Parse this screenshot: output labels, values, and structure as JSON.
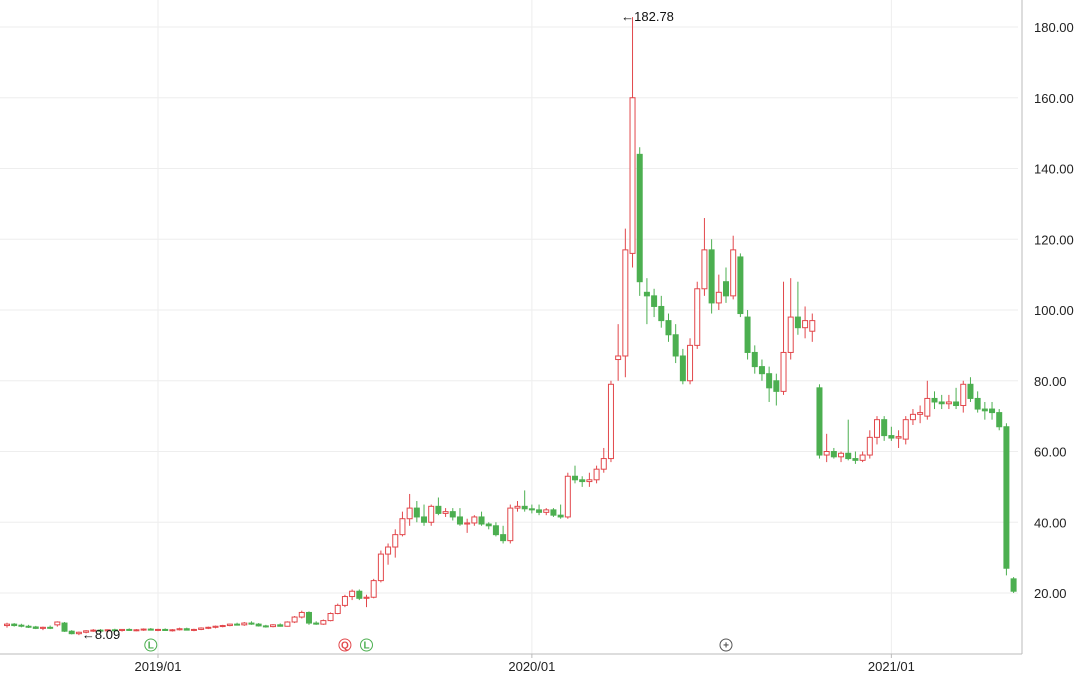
{
  "chart_data": {
    "type": "candlestick",
    "title": "",
    "xlabel": "",
    "ylabel": "",
    "ylim": [
      0,
      183
    ],
    "grid": true,
    "colors": {
      "up": "#e2474b",
      "down": "#4caf50",
      "grid": "#eeeeee",
      "axis": "#bbbbbb"
    },
    "y_ticks": [
      "20.00",
      "40.00",
      "60.00",
      "80.00",
      "100.00",
      "120.00",
      "140.00",
      "160.00",
      "180.00"
    ],
    "x_ticks": [
      {
        "label": "2019/01",
        "week": 21
      },
      {
        "label": "2020/01",
        "week": 73
      },
      {
        "label": "2021/01",
        "week": 123
      }
    ],
    "annotations": [
      {
        "label": "←182.78",
        "week": 85,
        "value": 182.78
      },
      {
        "label": "←8.09",
        "week": 10,
        "value": 8.09
      }
    ],
    "markers": [
      {
        "label": "L",
        "week": 20,
        "color": "#4caf50"
      },
      {
        "label": "Q",
        "week": 47,
        "color": "#e2474b"
      },
      {
        "label": "L",
        "week": 50,
        "color": "#4caf50"
      },
      {
        "label": "+",
        "week": 100,
        "color": "#555555"
      }
    ],
    "candles": [
      [
        10.8,
        11.6,
        10.2,
        11.2
      ],
      [
        11.2,
        11.5,
        10.5,
        10.8
      ],
      [
        10.9,
        11.3,
        10.3,
        10.6
      ],
      [
        10.6,
        11.0,
        10.1,
        10.4
      ],
      [
        10.4,
        10.7,
        9.8,
        10.0
      ],
      [
        10.0,
        10.5,
        9.5,
        10.3
      ],
      [
        10.3,
        10.8,
        9.8,
        10.1
      ],
      [
        11.0,
        12.0,
        10.5,
        11.8
      ],
      [
        11.5,
        11.8,
        9.0,
        9.2
      ],
      [
        9.2,
        9.5,
        8.3,
        8.5
      ],
      [
        8.5,
        9.1,
        8.09,
        8.9
      ],
      [
        8.9,
        9.5,
        8.6,
        9.3
      ],
      [
        9.3,
        9.8,
        9.0,
        9.5
      ],
      [
        9.5,
        9.8,
        9.1,
        9.3
      ],
      [
        9.3,
        9.7,
        9.0,
        9.6
      ],
      [
        9.6,
        9.9,
        9.2,
        9.4
      ],
      [
        9.4,
        9.8,
        9.1,
        9.7
      ],
      [
        9.7,
        10.0,
        9.3,
        9.5
      ],
      [
        9.5,
        9.8,
        9.2,
        9.6
      ],
      [
        9.6,
        10.0,
        9.3,
        9.8
      ],
      [
        9.8,
        10.1,
        9.4,
        9.5
      ],
      [
        9.5,
        9.9,
        9.2,
        9.7
      ],
      [
        9.7,
        10.0,
        9.3,
        9.4
      ],
      [
        9.4,
        9.8,
        9.1,
        9.6
      ],
      [
        9.6,
        10.2,
        9.4,
        9.9
      ],
      [
        9.9,
        10.2,
        9.4,
        9.5
      ],
      [
        9.5,
        9.9,
        9.2,
        9.7
      ],
      [
        9.7,
        10.3,
        9.5,
        10.1
      ],
      [
        10.1,
        10.5,
        9.8,
        10.3
      ],
      [
        10.3,
        10.8,
        10.0,
        10.6
      ],
      [
        10.6,
        11.0,
        10.3,
        10.8
      ],
      [
        10.8,
        11.3,
        10.6,
        11.2
      ],
      [
        11.2,
        11.6,
        10.8,
        11.0
      ],
      [
        11.0,
        11.8,
        10.7,
        11.5
      ],
      [
        11.5,
        12.0,
        11.0,
        11.2
      ],
      [
        11.2,
        11.5,
        10.5,
        10.7
      ],
      [
        10.7,
        11.0,
        10.2,
        10.5
      ],
      [
        10.5,
        11.2,
        10.3,
        11.0
      ],
      [
        11.0,
        11.4,
        10.5,
        10.6
      ],
      [
        10.6,
        12.0,
        10.5,
        11.8
      ],
      [
        11.8,
        13.5,
        11.5,
        13.2
      ],
      [
        13.2,
        15.0,
        12.8,
        14.5
      ],
      [
        14.5,
        14.8,
        11.0,
        11.5
      ],
      [
        11.5,
        12.0,
        11.0,
        11.2
      ],
      [
        11.2,
        12.5,
        11.0,
        12.2
      ],
      [
        12.2,
        14.5,
        12.0,
        14.2
      ],
      [
        14.2,
        17.0,
        14.0,
        16.5
      ],
      [
        16.5,
        19.5,
        16.0,
        19.0
      ],
      [
        19.0,
        21.0,
        18.0,
        20.5
      ],
      [
        20.5,
        21.0,
        18.0,
        18.5
      ],
      [
        18.5,
        19.5,
        16.0,
        18.8
      ],
      [
        18.8,
        24.0,
        18.5,
        23.5
      ],
      [
        23.5,
        32.0,
        23.0,
        31.0
      ],
      [
        31.0,
        34.0,
        28.0,
        33.0
      ],
      [
        33.0,
        38.0,
        30.0,
        36.5
      ],
      [
        36.5,
        43.0,
        36.0,
        41.0
      ],
      [
        41.0,
        48.0,
        39.0,
        44.0
      ],
      [
        44.0,
        46.0,
        40.0,
        41.5
      ],
      [
        41.5,
        45.0,
        39.0,
        40.0
      ],
      [
        40.0,
        45.0,
        39.0,
        44.5
      ],
      [
        44.5,
        47.0,
        42.0,
        42.5
      ],
      [
        42.5,
        44.0,
        41.5,
        43.0
      ],
      [
        43.0,
        44.0,
        40.5,
        41.5
      ],
      [
        41.5,
        44.0,
        39.0,
        39.5
      ],
      [
        39.5,
        41.0,
        37.0,
        39.8
      ],
      [
        39.8,
        42.0,
        39.0,
        41.5
      ],
      [
        41.5,
        43.0,
        39.0,
        39.5
      ],
      [
        39.5,
        40.0,
        38.0,
        39.0
      ],
      [
        39.0,
        40.0,
        36.0,
        36.5
      ],
      [
        36.5,
        39.0,
        34.0,
        34.8
      ],
      [
        34.8,
        45.0,
        34.0,
        44.0
      ],
      [
        44.0,
        46.0,
        43.0,
        44.5
      ],
      [
        44.5,
        49.0,
        43.0,
        43.8
      ],
      [
        43.8,
        45.0,
        42.5,
        43.5
      ],
      [
        43.5,
        45.0,
        42.0,
        42.8
      ],
      [
        42.8,
        44.0,
        42.0,
        43.5
      ],
      [
        43.5,
        44.0,
        41.5,
        42.0
      ],
      [
        42.0,
        45.0,
        41.0,
        41.5
      ],
      [
        41.5,
        54.0,
        41.0,
        53.0
      ],
      [
        53.0,
        56.0,
        51.0,
        52.0
      ],
      [
        52.0,
        53.0,
        50.0,
        51.5
      ],
      [
        51.5,
        54.0,
        50.0,
        52.0
      ],
      [
        52.0,
        56.0,
        51.0,
        55.0
      ],
      [
        55.0,
        61.0,
        54.0,
        58.0
      ],
      [
        58.0,
        80.0,
        57.0,
        79.0
      ],
      [
        86.0,
        96.0,
        80.0,
        87.0
      ],
      [
        87.0,
        123.0,
        81.0,
        117.0
      ],
      [
        116.0,
        182.78,
        112.0,
        160.0
      ],
      [
        144.0,
        146.0,
        104.0,
        108.0
      ],
      [
        105.0,
        109.0,
        96.0,
        104.0
      ],
      [
        104.0,
        106.0,
        98.0,
        101.0
      ],
      [
        101.0,
        104.0,
        95.0,
        97.0
      ],
      [
        97.0,
        99.0,
        91.0,
        93.0
      ],
      [
        93.0,
        96.0,
        85.0,
        87.0
      ],
      [
        87.0,
        89.0,
        79.0,
        80.0
      ],
      [
        80.0,
        92.0,
        79.0,
        90.0
      ],
      [
        90.0,
        108.0,
        89.0,
        106.0
      ],
      [
        106.0,
        126.0,
        104.0,
        117.0
      ],
      [
        117.0,
        120.0,
        99.0,
        102.0
      ],
      [
        102.0,
        110.0,
        100.0,
        105.0
      ],
      [
        108.0,
        112.0,
        102.0,
        104.0
      ],
      [
        104.0,
        121.0,
        103.0,
        117.0
      ],
      [
        115.0,
        116.0,
        98.0,
        99.0
      ],
      [
        98.0,
        100.0,
        86.0,
        88.0
      ],
      [
        88.0,
        90.0,
        82.0,
        84.0
      ],
      [
        84.0,
        86.0,
        80.0,
        82.0
      ],
      [
        82.0,
        84.0,
        74.0,
        78.0
      ],
      [
        80.0,
        82.0,
        73.0,
        77.0
      ],
      [
        77.0,
        108.0,
        76.0,
        88.0
      ],
      [
        88.0,
        109.0,
        86.0,
        98.0
      ],
      [
        98.0,
        108.0,
        93.0,
        95.0
      ],
      [
        95.0,
        101.0,
        92.0,
        97.0
      ],
      [
        94.0,
        99.0,
        91.0,
        97.0
      ],
      [
        78.0,
        79.0,
        58.0,
        59.0
      ],
      [
        59.0,
        65.0,
        57.0,
        60.0
      ],
      [
        60.0,
        61.0,
        58.0,
        58.5
      ],
      [
        58.5,
        60.0,
        57.0,
        59.5
      ],
      [
        59.5,
        69.0,
        57.5,
        58.0
      ],
      [
        58.0,
        60.0,
        56.5,
        57.5
      ],
      [
        57.5,
        60.0,
        57.0,
        59.0
      ],
      [
        59.0,
        66.0,
        58.0,
        64.0
      ],
      [
        64.0,
        70.0,
        62.0,
        69.0
      ],
      [
        69.0,
        70.0,
        63.0,
        64.5
      ],
      [
        64.5,
        67.0,
        63.0,
        63.8
      ],
      [
        63.8,
        66.0,
        61.0,
        64.2
      ],
      [
        63.5,
        70.0,
        62.0,
        69.0
      ],
      [
        69.0,
        72.0,
        67.5,
        70.5
      ],
      [
        70.5,
        73.0,
        68.0,
        71.0
      ],
      [
        70.0,
        80.0,
        69.0,
        75.0
      ],
      [
        75.0,
        77.0,
        72.0,
        74.0
      ],
      [
        74.0,
        76.0,
        72.0,
        73.5
      ],
      [
        73.5,
        76.0,
        72.0,
        74.0
      ],
      [
        74.0,
        78.0,
        72.0,
        73.0
      ],
      [
        73.0,
        80.0,
        71.0,
        79.0
      ],
      [
        79.0,
        81.0,
        74.0,
        75.0
      ],
      [
        75.0,
        77.0,
        71.0,
        72.0
      ],
      [
        72.0,
        74.0,
        69.0,
        71.5
      ],
      [
        72.0,
        74.0,
        69.0,
        71.0
      ],
      [
        71.0,
        72.0,
        66.0,
        67.0
      ],
      [
        67.0,
        68.0,
        25.0,
        27.0
      ],
      [
        24.0,
        24.5,
        20.0,
        20.5
      ]
    ]
  }
}
